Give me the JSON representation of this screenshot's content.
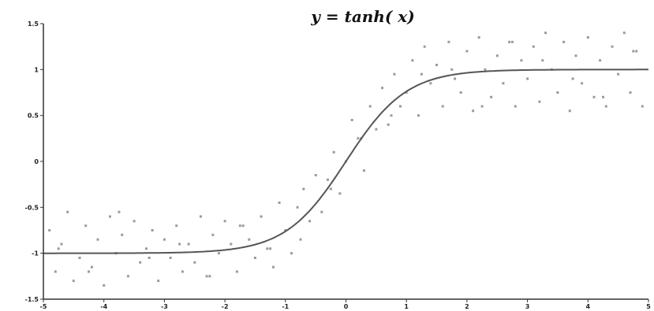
{
  "chart_data": {
    "type": "scatter",
    "title": "y = tanh( x)",
    "xlabel": "",
    "ylabel": "",
    "xlim": [
      -5,
      5
    ],
    "ylim": [
      -1.5,
      1.5
    ],
    "grid": false,
    "x_ticks": [
      -5,
      -4,
      -3,
      -2,
      -1,
      0,
      1,
      2,
      3,
      4,
      5
    ],
    "y_ticks": [
      -1.5,
      -1,
      -0.5,
      0,
      0.5,
      1,
      1.5
    ],
    "x_tick_labels": [
      "-5",
      "-4",
      "-3",
      "-2",
      "-1",
      "0",
      "1",
      "2",
      "3",
      "4",
      "5"
    ],
    "y_tick_labels": [
      "-1.5",
      "-1",
      "-0.5",
      "0",
      "0.5",
      "1",
      "1.5"
    ],
    "colors": {
      "curve": "#555555",
      "points": "#9a9a9a",
      "axis": "#333333"
    },
    "series": [
      {
        "kind": "line",
        "function": "tanh",
        "x": [
          -5.0,
          -4.5,
          -4.0,
          -3.5,
          -3.0,
          -2.5,
          -2.0,
          -1.5,
          -1.0,
          -0.75,
          -0.5,
          -0.25,
          0.0,
          0.25,
          0.5,
          0.75,
          1.0,
          1.5,
          2.0,
          2.5,
          3.0,
          3.5,
          4.0,
          4.5,
          5.0
        ],
        "y": [
          -1.0,
          -1.0,
          -1.0,
          -1.0,
          -0.995,
          -0.987,
          -0.964,
          -0.905,
          -0.762,
          -0.635,
          -0.462,
          -0.245,
          0.0,
          0.245,
          0.462,
          0.635,
          0.762,
          0.905,
          0.964,
          0.987,
          0.995,
          1.0,
          1.0,
          1.0,
          1.0
        ]
      },
      {
        "kind": "scatter",
        "x": [
          -4.9,
          -4.8,
          -4.7,
          -4.6,
          -4.5,
          -4.4,
          -4.3,
          -4.2,
          -4.1,
          -4.0,
          -3.9,
          -3.8,
          -3.7,
          -3.6,
          -3.5,
          -3.4,
          -3.3,
          -3.2,
          -3.1,
          -3.0,
          -2.9,
          -2.8,
          -2.7,
          -2.6,
          -2.5,
          -2.4,
          -2.3,
          -2.2,
          -2.1,
          -2.0,
          -1.9,
          -1.8,
          -1.7,
          -1.6,
          -1.5,
          -1.4,
          -1.3,
          -1.2,
          -1.1,
          -1.0,
          -0.9,
          -0.8,
          -0.7,
          -0.6,
          -0.5,
          -0.4,
          -0.3,
          -0.2,
          -0.1,
          0.0,
          0.1,
          0.2,
          0.3,
          0.4,
          0.5,
          0.6,
          0.7,
          0.8,
          0.9,
          1.0,
          1.1,
          1.2,
          1.3,
          1.4,
          1.5,
          1.6,
          1.7,
          1.8,
          1.9,
          2.0,
          2.1,
          2.2,
          2.3,
          2.4,
          2.5,
          2.6,
          2.7,
          2.8,
          2.9,
          3.0,
          3.1,
          3.2,
          3.3,
          3.4,
          3.5,
          3.6,
          3.7,
          3.8,
          3.9,
          4.0,
          4.1,
          4.2,
          4.3,
          4.4,
          4.5,
          4.6,
          4.7,
          4.8,
          4.9,
          -4.75,
          -4.25,
          -3.75,
          -3.25,
          -2.75,
          -2.25,
          -1.75,
          -1.25,
          -0.75,
          -0.25,
          0.25,
          0.75,
          1.25,
          1.75,
          2.25,
          2.75,
          3.25,
          3.75,
          4.25,
          4.75
        ],
        "y": [
          -0.75,
          -1.2,
          -0.9,
          -0.55,
          -1.3,
          -1.05,
          -0.7,
          -1.15,
          -0.85,
          -1.35,
          -0.6,
          -1.0,
          -0.8,
          -1.25,
          -0.65,
          -1.1,
          -0.95,
          -0.75,
          -1.3,
          -0.85,
          -1.05,
          -0.7,
          -1.2,
          -0.9,
          -1.1,
          -0.6,
          -1.25,
          -0.8,
          -1.0,
          -0.65,
          -0.9,
          -1.2,
          -0.7,
          -0.85,
          -1.05,
          -0.6,
          -0.95,
          -1.15,
          -0.45,
          -0.75,
          -1.0,
          -0.5,
          -0.3,
          -0.65,
          -0.15,
          -0.55,
          -0.2,
          0.1,
          -0.35,
          0.0,
          0.45,
          0.25,
          -0.1,
          0.6,
          0.35,
          0.8,
          0.4,
          0.95,
          0.6,
          0.75,
          1.1,
          0.5,
          1.25,
          0.85,
          1.05,
          0.6,
          1.3,
          0.9,
          0.75,
          1.2,
          0.55,
          1.35,
          1.0,
          0.7,
          1.15,
          0.85,
          1.3,
          0.6,
          1.1,
          0.9,
          1.25,
          0.65,
          1.4,
          1.0,
          0.75,
          1.3,
          0.55,
          1.15,
          0.85,
          1.35,
          0.7,
          1.1,
          0.6,
          1.25,
          0.95,
          1.4,
          0.75,
          1.2,
          0.6,
          -0.95,
          -1.2,
          -0.55,
          -1.05,
          -0.9,
          -1.25,
          -0.7,
          -0.95,
          -0.85,
          -0.3,
          0.25,
          0.5,
          0.95,
          1.0,
          0.6,
          1.3,
          1.1,
          0.9,
          0.7,
          1.2
        ]
      }
    ]
  }
}
